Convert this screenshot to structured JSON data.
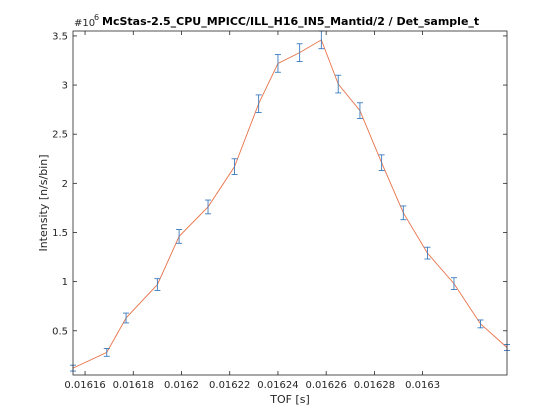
{
  "chart_data": {
    "type": "line",
    "title": "McStas-2.5_CPU_MPICC/ILL_H16_IN5_Mantid/2 / Det_sample_t",
    "xlabel": "TOF [s]",
    "ylabel": "Intensity [n/s/bin]",
    "y_exponent_base": "#10",
    "y_exponent_power": "6",
    "xlim": [
      0.016155,
      0.016335
    ],
    "ylim": [
      0.05,
      3.55
    ],
    "x_ticks": [
      0.01616,
      0.01618,
      0.0162,
      0.01622,
      0.01624,
      0.01626,
      0.01628,
      0.0163
    ],
    "x_tick_labels": [
      "0.01616",
      "0.01618",
      "0.0162",
      "0.01622",
      "0.01624",
      "0.01626",
      "0.01628",
      "0.0163"
    ],
    "y_ticks": [
      0.5,
      1,
      1.5,
      2,
      2.5,
      3,
      3.5
    ],
    "y_tick_labels": [
      "0.5",
      "1",
      "1.5",
      "2",
      "2.5",
      "3",
      "3.5"
    ],
    "grid": false,
    "line_color": "#e8734a",
    "errorbar_color": "#3a7bbf",
    "series": [
      {
        "x": [
          0.016155,
          0.016169,
          0.016177,
          0.01619,
          0.016199,
          0.016211,
          0.016222,
          0.016232,
          0.01624,
          0.016249,
          0.016258,
          0.016265,
          0.016274,
          0.016283,
          0.016292,
          0.016302,
          0.016313,
          0.016324,
          0.016335
        ],
        "y": [
          0.12,
          0.28,
          0.63,
          0.97,
          1.46,
          1.76,
          2.17,
          2.81,
          3.22,
          3.33,
          3.46,
          3.01,
          2.74,
          2.21,
          1.7,
          1.29,
          0.98,
          0.57,
          0.33
        ],
        "err": [
          0.03,
          0.04,
          0.05,
          0.06,
          0.07,
          0.07,
          0.08,
          0.09,
          0.09,
          0.09,
          0.09,
          0.09,
          0.08,
          0.08,
          0.07,
          0.06,
          0.06,
          0.04,
          0.03
        ]
      }
    ]
  }
}
